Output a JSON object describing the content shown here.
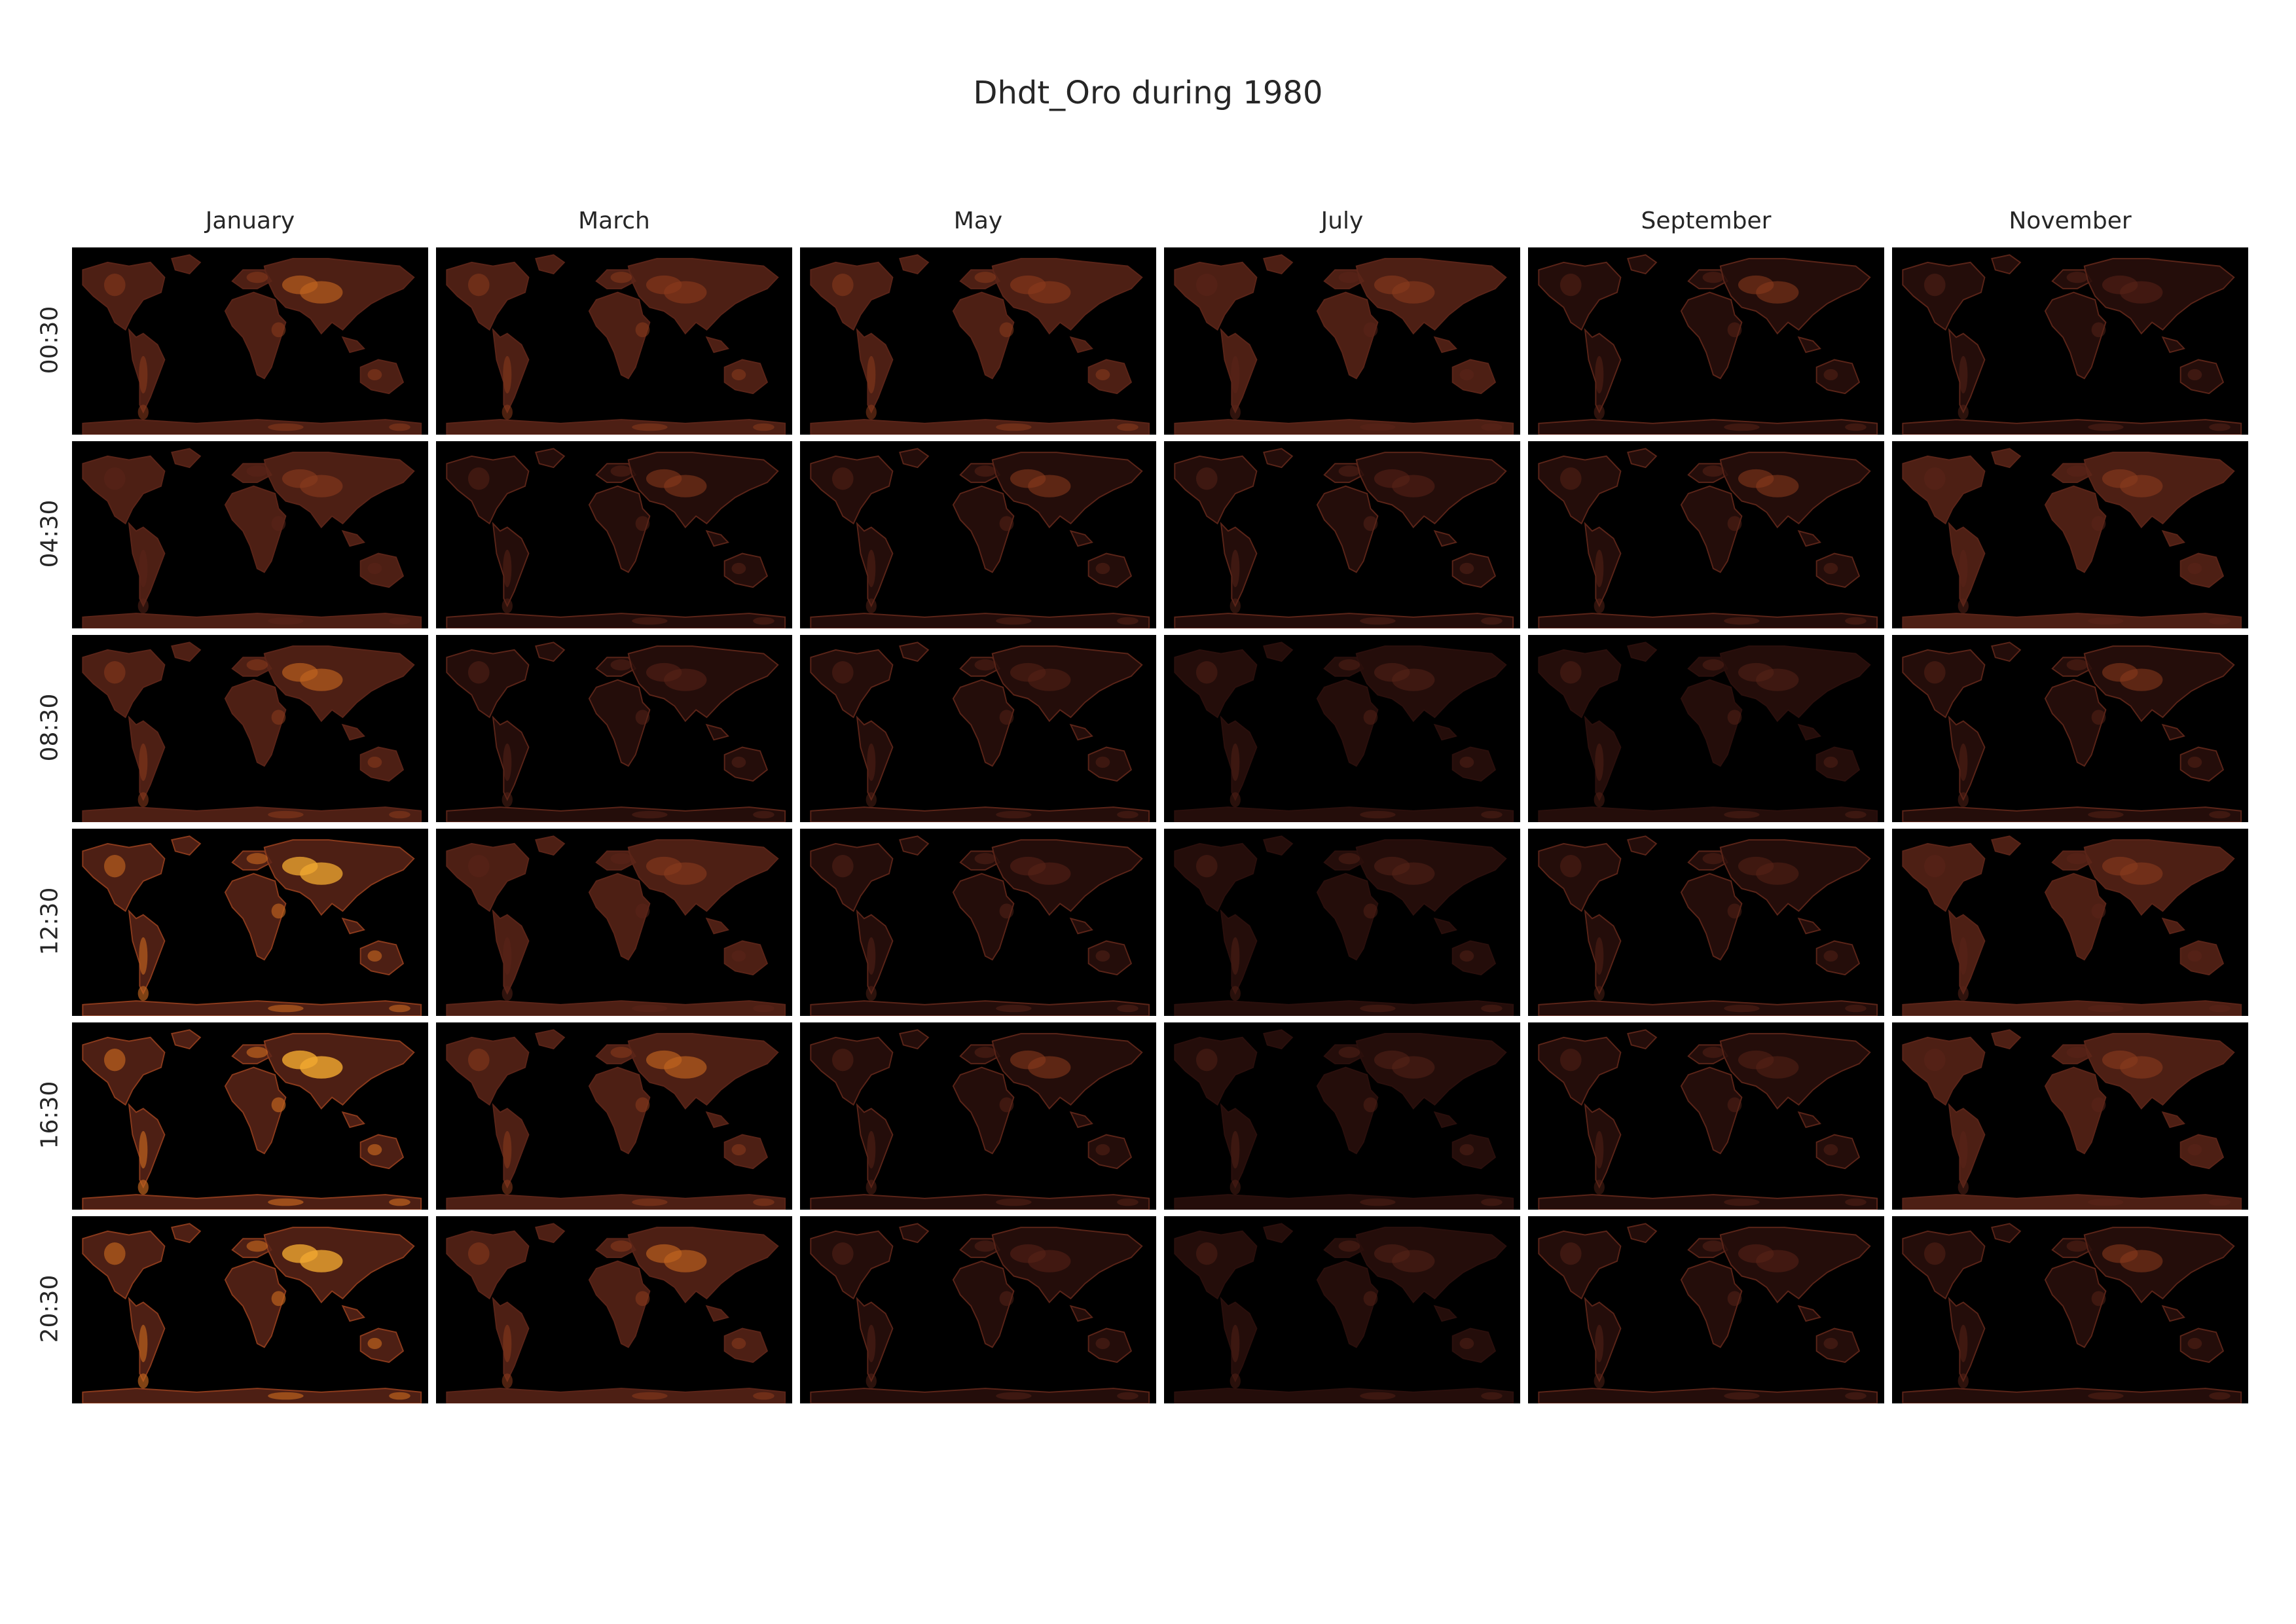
{
  "figure": {
    "title": "Dhdt_Oro during 1980"
  },
  "chart_data": {
    "type": "heatmap",
    "title": "Dhdt_Oro during 1980",
    "columns": [
      "January",
      "March",
      "May",
      "July",
      "September",
      "November"
    ],
    "rows": [
      "00:30",
      "04:30",
      "08:30",
      "12:30",
      "16:30",
      "20:30"
    ],
    "colormap": [
      "#000000",
      "#2a0f0c",
      "#5a2418",
      "#8a3a1c",
      "#c0641e",
      "#f0a830"
    ],
    "panel_background": "#000000",
    "intensity": [
      [
        0.55,
        0.5,
        0.5,
        0.45,
        0.4,
        0.35
      ],
      [
        0.45,
        0.4,
        0.4,
        0.35,
        0.4,
        0.45
      ],
      [
        0.55,
        0.35,
        0.3,
        0.25,
        0.25,
        0.4
      ],
      [
        0.75,
        0.45,
        0.35,
        0.25,
        0.3,
        0.45
      ],
      [
        0.85,
        0.55,
        0.4,
        0.25,
        0.3,
        0.45
      ],
      [
        0.8,
        0.55,
        0.35,
        0.25,
        0.35,
        0.4
      ]
    ]
  }
}
